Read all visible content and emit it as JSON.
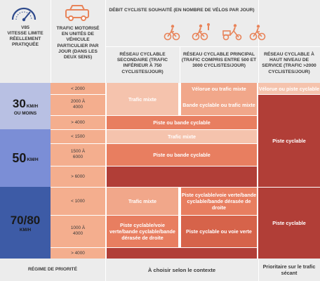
{
  "header": {
    "v85": "V85",
    "speed_label": "Vitesse limite réellement pratiquée",
    "traffic_label": "Trafic motorisé en unités de véhicule particulier par jour (dans les deux sens)",
    "bike_volume": "Débit cycliste souhaité (en nombre de vélos par jour)",
    "col_secondary": "Réseau cyclable secondaire (trafic inférieur à 750 cyclistes/jour)",
    "col_principal": "Réseau cyclable principal (trafic compris entre 500 et 3000 cyclistes/jour)",
    "col_high": "Réseau cyclable à haut niveau de service (trafic >2000 cyclistes/jour)"
  },
  "speeds": [
    {
      "value": "30",
      "unit": "KM/H",
      "note": "OU MOINS"
    },
    {
      "value": "50",
      "unit": "KM/H"
    },
    {
      "value": "70/80",
      "unit": "KM/H"
    }
  ],
  "traffic": [
    "< 2000",
    "2000 À 4000",
    "> 4000",
    "< 1500",
    "1500 À 6000",
    "> 6000",
    "< 1000",
    "1000 À 4000",
    "> 4000"
  ],
  "cells": {
    "trafic_mixte": "Trafic mixte",
    "trafic_mixte_lower": "Trafic mixte",
    "velorue_trafic_mixte": "Vélorue ou trafic mixte",
    "bande_trafic_mixte": "Bande cyclable ou trafic mixte",
    "velorue_piste": "Vélorue ou piste cyclable",
    "piste_bande": "Piste ou bande cyclable",
    "piste_cyclable": "Piste cyclable",
    "piste_voie_verte_principal": "Piste cyclable/voie verte/bande cyclable/bande dérasée de droite",
    "piste_voie_verte_secondary": "Piste cyclable/voie verte/bande cyclable/bande dérasée de droite",
    "piste_ou_voie_verte": "Piste cyclable ou voie verte"
  },
  "footer": {
    "priority": "Régime de priorité",
    "context": "À choisir selon le contexte",
    "cross": "Prioritaire sur le trafic sécant"
  },
  "colors": {
    "header_bg": "#ececec",
    "speed_30": "#b8c0e3",
    "speed_50": "#7b8ed6",
    "speed_70_80": "#3d5ba6",
    "light_salmon": "#f5c3ad",
    "salmon": "#f1a78a",
    "orange": "#e87e60",
    "dark_red": "#b13e37",
    "icon_orange": "#e8845a"
  },
  "icons": [
    "speedometer-icon",
    "car-icon",
    "cyclist-icon",
    "cargo-bike-icon"
  ]
}
